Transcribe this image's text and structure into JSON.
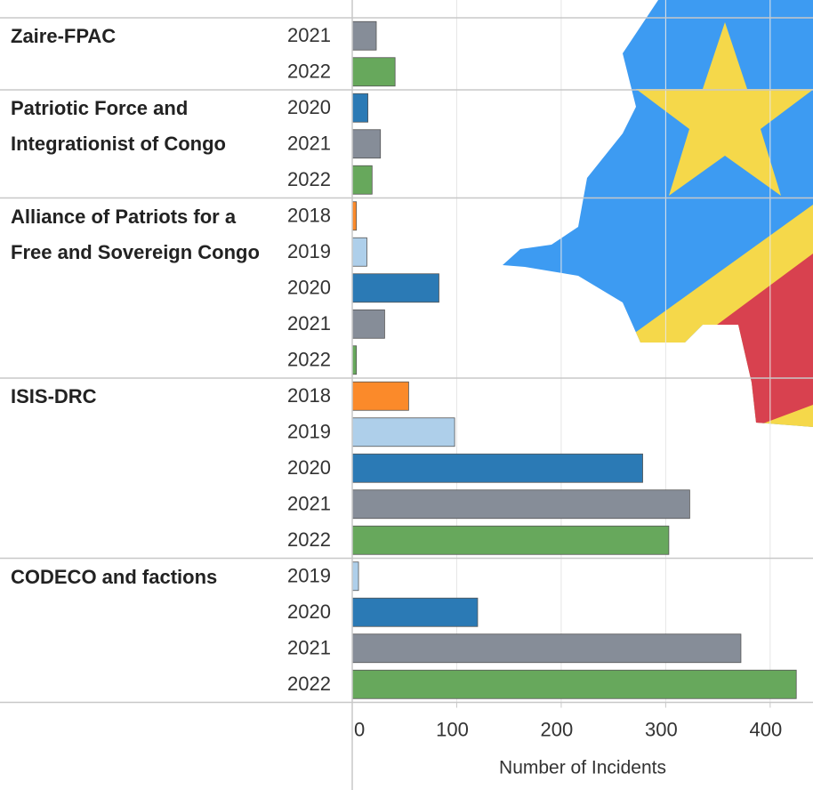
{
  "chart_data": {
    "type": "bar",
    "xlabel": "Number of Incidents",
    "xlim": [
      0,
      441
    ],
    "xticks": [
      0,
      100,
      200,
      300,
      400
    ],
    "grid": true,
    "year_colors": {
      "2018": "#fb8a2a",
      "2019": "#aecfea",
      "2020": "#2b7ab5",
      "2021": "#868d98",
      "2022": "#67a85c"
    },
    "groups": [
      {
        "name": "Zaire-FPAC",
        "years": [
          "2021",
          "2022"
        ],
        "values": [
          23,
          41
        ]
      },
      {
        "name": "Patriotic Force and Integrationist of Congo",
        "years": [
          "2020",
          "2021",
          "2022"
        ],
        "values": [
          15,
          27,
          19
        ]
      },
      {
        "name": "Alliance of Patriots for a Free and Sovereign Congo",
        "years": [
          "2018",
          "2019",
          "2020",
          "2021",
          "2022"
        ],
        "values": [
          4,
          14,
          83,
          31,
          4
        ]
      },
      {
        "name": "ISIS-DRC",
        "years": [
          "2018",
          "2019",
          "2020",
          "2021",
          "2022"
        ],
        "values": [
          54,
          98,
          278,
          323,
          303
        ]
      },
      {
        "name": "CODECO and factions",
        "years": [
          "2019",
          "2020",
          "2021",
          "2022"
        ],
        "values": [
          6,
          120,
          372,
          425
        ]
      }
    ]
  }
}
